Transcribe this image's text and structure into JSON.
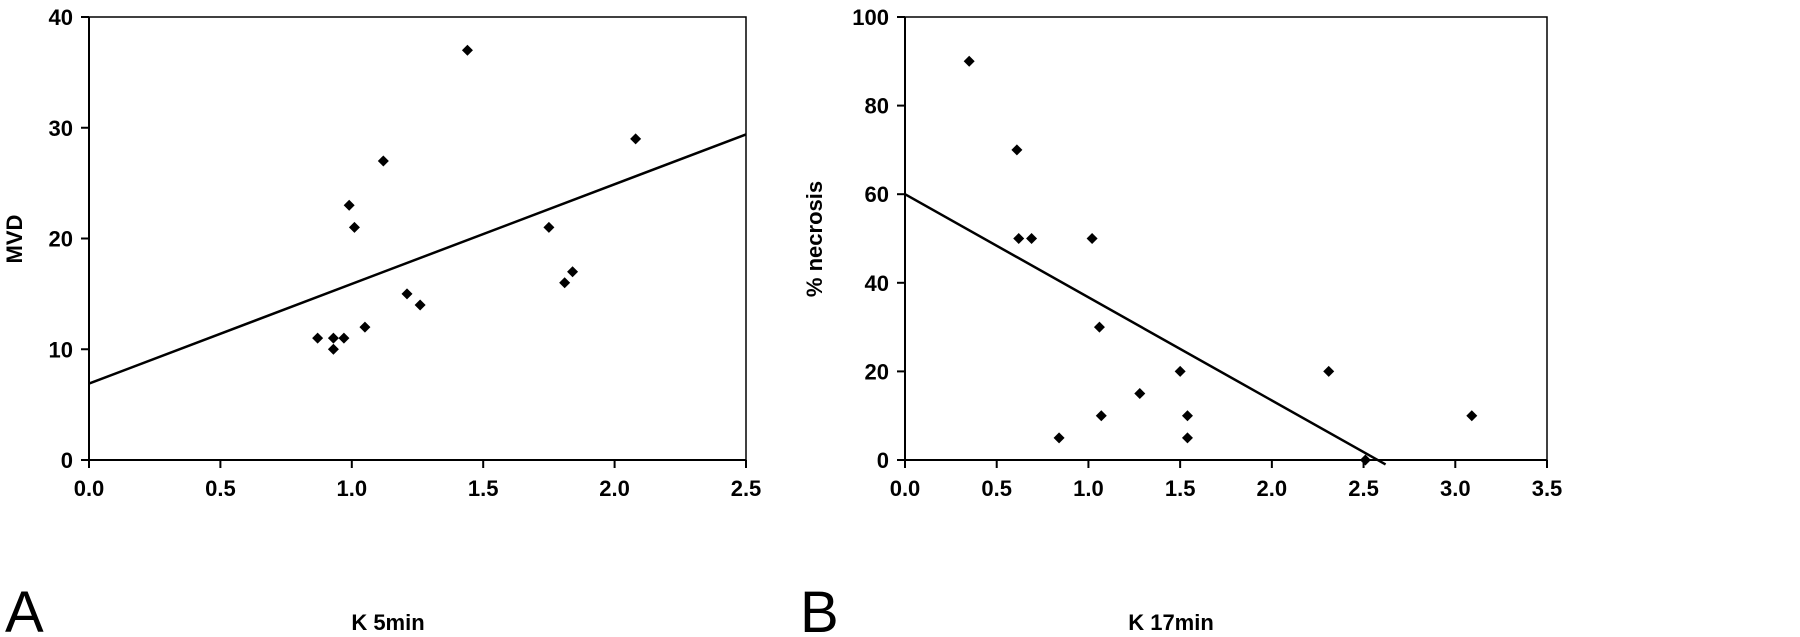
{
  "chart_data": [
    {
      "type": "scatter",
      "panel_label": "A",
      "title": "",
      "xlabel": "K 5min",
      "ylabel": "MVD",
      "xlim": [
        0,
        2.5
      ],
      "ylim": [
        0,
        40
      ],
      "x_ticks": [
        "0.0",
        "0.5",
        "1.0",
        "1.5",
        "2.0",
        "2.5"
      ],
      "y_ticks": [
        "0",
        "10",
        "20",
        "30",
        "40"
      ],
      "grid": false,
      "legend": "none",
      "color": "#000000",
      "x": [
        0.87,
        0.93,
        0.93,
        0.97,
        0.99,
        1.01,
        1.05,
        1.12,
        1.21,
        1.26,
        1.44,
        1.75,
        1.81,
        1.84,
        2.08
      ],
      "y": [
        11,
        10,
        11,
        11,
        23,
        21,
        12,
        27,
        15,
        14,
        37,
        21,
        16,
        17,
        29
      ],
      "trendline": {
        "x": [
          0,
          2.5
        ],
        "y": [
          6.9,
          29.4
        ]
      }
    },
    {
      "type": "scatter",
      "panel_label": "B",
      "title": "",
      "xlabel": "K 17min",
      "ylabel": "% necrosis",
      "xlim": [
        0,
        3.5
      ],
      "ylim": [
        0,
        100
      ],
      "x_ticks": [
        "0.0",
        "0.5",
        "1.0",
        "1.5",
        "2.0",
        "2.5",
        "3.0",
        "3.5"
      ],
      "y_ticks": [
        "0",
        "20",
        "40",
        "60",
        "80",
        "100"
      ],
      "grid": false,
      "legend": "none",
      "color": "#000000",
      "x": [
        0.35,
        0.61,
        0.62,
        0.69,
        0.84,
        1.02,
        1.06,
        1.07,
        1.28,
        1.5,
        1.54,
        1.54,
        2.31,
        2.51,
        3.09
      ],
      "y": [
        90,
        70,
        50,
        50,
        5,
        50,
        30,
        10,
        15,
        20,
        10,
        5,
        20,
        0,
        10
      ],
      "trendline": {
        "x": [
          0,
          2.62
        ],
        "y": [
          60,
          -1
        ]
      }
    }
  ]
}
